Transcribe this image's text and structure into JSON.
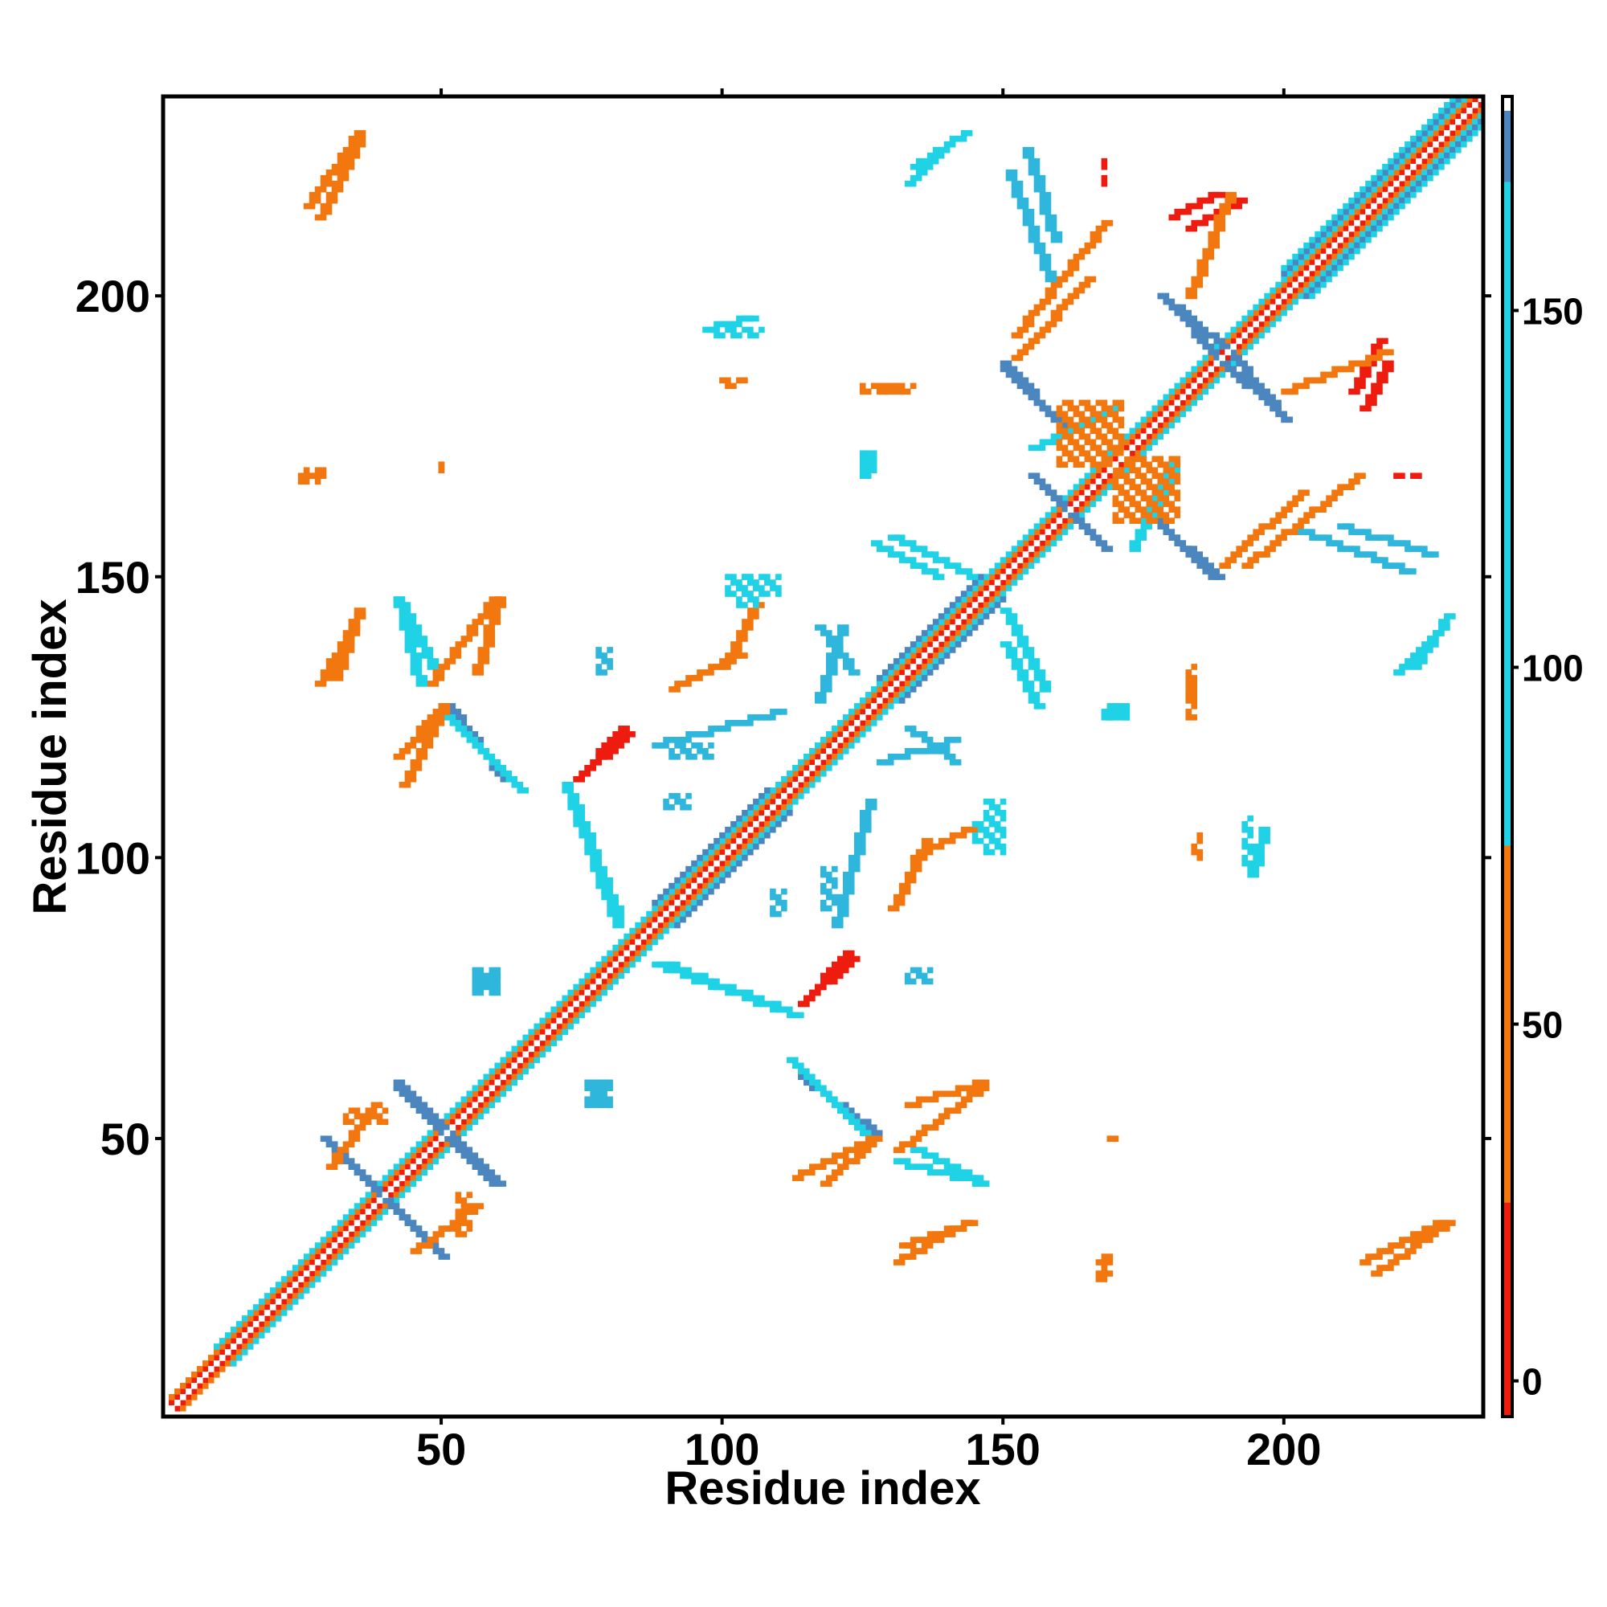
{
  "chart_data": {
    "type": "heatmap",
    "title": "",
    "xlabel": "Residue index",
    "ylabel": "Residue index",
    "xlim": [
      1,
      235
    ],
    "ylim": [
      1,
      235
    ],
    "x_ticks": [
      50,
      100,
      150,
      200
    ],
    "y_ticks": [
      50,
      100,
      150,
      200
    ],
    "x_tick_labels": [
      "50",
      "100",
      "150",
      "200"
    ],
    "y_tick_labels": [
      "50",
      "100",
      "150",
      "200"
    ],
    "colorbar": {
      "range": [
        -5,
        180
      ],
      "ticks": [
        0,
        50,
        100,
        150
      ],
      "tick_labels": [
        "0",
        "50",
        "100",
        "150"
      ],
      "bands": [
        {
          "from": -5,
          "to": 25,
          "color": "#ee1c0e"
        },
        {
          "from": 25,
          "to": 75,
          "color": "#f2770e"
        },
        {
          "from": 75,
          "to": 168,
          "color": "#1fd2e6"
        },
        {
          "from": 168,
          "to": 178,
          "color": "#4c86be"
        },
        {
          "from": 178,
          "to": 180,
          "color": "#ffffff"
        }
      ]
    },
    "palette": {
      "red": "#ee1c0e",
      "orange": "#f2770e",
      "amber": "#f5a20a",
      "cyan": "#1fd2e6",
      "sky": "#2fb6dc",
      "steel": "#4c86be"
    },
    "diagonal": {
      "from": 2,
      "to": 234,
      "value": 180
    },
    "bands": [
      {
        "kind": "parallel",
        "from": 2,
        "to": 234,
        "offset": 1,
        "color": "red"
      },
      {
        "kind": "parallel",
        "from": 2,
        "to": 234,
        "offset": 2,
        "color": "orange"
      },
      {
        "kind": "parallel",
        "from": 10,
        "to": 234,
        "offset": 3,
        "color": "cyan"
      },
      {
        "kind": "parallel",
        "from": 88,
        "to": 108,
        "offset": 4,
        "color": "steel"
      },
      {
        "kind": "parallel",
        "from": 128,
        "to": 146,
        "offset": 4,
        "color": "steel"
      },
      {
        "kind": "parallel",
        "from": 200,
        "to": 232,
        "offset": 4,
        "color": "steel"
      },
      {
        "kind": "parallel",
        "from": 200,
        "to": 232,
        "offset": 5,
        "color": "cyan"
      },
      {
        "kind": "segment",
        "x1": 29,
        "y1": 50,
        "x2": 49,
        "y2": 30,
        "color": "steel"
      },
      {
        "kind": "segment",
        "x1": 42,
        "y1": 59,
        "x2": 60,
        "y2": 42,
        "color": "steel"
      },
      {
        "kind": "segment",
        "x1": 51,
        "y1": 127,
        "x2": 61,
        "y2": 114,
        "color": "steel"
      },
      {
        "kind": "segment",
        "x1": 112,
        "y1": 64,
        "x2": 126,
        "y2": 50,
        "color": "cyan"
      },
      {
        "kind": "segment",
        "x1": 150,
        "y1": 187,
        "x2": 160,
        "y2": 177,
        "color": "steel"
      },
      {
        "kind": "segment",
        "x1": 178,
        "y1": 200,
        "x2": 190,
        "y2": 190,
        "color": "steel"
      },
      {
        "kind": "segment",
        "x1": 188,
        "y1": 189,
        "x2": 200,
        "y2": 178,
        "color": "steel"
      },
      {
        "kind": "segment",
        "x1": 155,
        "y1": 168,
        "x2": 165,
        "y2": 158,
        "color": "steel"
      },
      {
        "kind": "segment",
        "x1": 177,
        "y1": 160,
        "x2": 188,
        "y2": 150,
        "color": "steel"
      },
      {
        "kind": "segment",
        "x1": 74,
        "y1": 114,
        "x2": 83,
        "y2": 122,
        "color": "red"
      },
      {
        "kind": "segment",
        "x1": 114,
        "y1": 74,
        "x2": 123,
        "y2": 82,
        "color": "red"
      },
      {
        "kind": "segment",
        "x1": 42,
        "y1": 146,
        "x2": 49,
        "y2": 133,
        "color": "cyan"
      },
      {
        "kind": "segment",
        "x1": 56,
        "y1": 133,
        "x2": 60,
        "y2": 146,
        "color": "orange"
      },
      {
        "kind": "segment",
        "x1": 42,
        "y1": 118,
        "x2": 50,
        "y2": 127,
        "color": "orange"
      },
      {
        "kind": "segment",
        "x1": 72,
        "y1": 113,
        "x2": 81,
        "y2": 90,
        "color": "cyan"
      },
      {
        "kind": "segment",
        "x1": 88,
        "y1": 81,
        "x2": 110,
        "y2": 73,
        "color": "cyan"
      },
      {
        "kind": "segment",
        "x1": 113,
        "y1": 43,
        "x2": 127,
        "y2": 50,
        "color": "orange"
      },
      {
        "kind": "segment",
        "x1": 131,
        "y1": 48,
        "x2": 146,
        "y2": 59,
        "color": "orange"
      },
      {
        "kind": "segment",
        "x1": 131,
        "y1": 46,
        "x2": 146,
        "y2": 42,
        "color": "cyan"
      },
      {
        "kind": "segment",
        "x1": 132,
        "y1": 31,
        "x2": 144,
        "y2": 35,
        "color": "orange"
      },
      {
        "kind": "segment",
        "x1": 127,
        "y1": 156,
        "x2": 138,
        "y2": 150,
        "color": "cyan"
      },
      {
        "kind": "segment",
        "x1": 150,
        "y1": 144,
        "x2": 157,
        "y2": 130,
        "color": "cyan"
      },
      {
        "kind": "segment",
        "x1": 154,
        "y1": 226,
        "x2": 159,
        "y2": 210,
        "color": "sky"
      },
      {
        "kind": "segment",
        "x1": 152,
        "y1": 193,
        "x2": 168,
        "y2": 213,
        "color": "orange"
      },
      {
        "kind": "segment",
        "x1": 183,
        "y1": 212,
        "x2": 192,
        "y2": 217,
        "color": "red"
      },
      {
        "kind": "segment",
        "x1": 200,
        "y1": 183,
        "x2": 218,
        "y2": 190,
        "color": "orange"
      },
      {
        "kind": "segment",
        "x1": 189,
        "y1": 152,
        "x2": 203,
        "y2": 165,
        "color": "orange"
      },
      {
        "kind": "segment",
        "x1": 203,
        "y1": 158,
        "x2": 222,
        "y2": 151,
        "color": "sky"
      },
      {
        "kind": "segment",
        "x1": 134,
        "y1": 100,
        "x2": 145,
        "y2": 106,
        "color": "orange"
      },
      {
        "kind": "segment",
        "x1": 128,
        "y1": 117,
        "x2": 141,
        "y2": 121,
        "color": "sky"
      },
      {
        "kind": "segment",
        "x1": 117,
        "y1": 141,
        "x2": 123,
        "y2": 133,
        "color": "sky"
      },
      {
        "kind": "segment",
        "x1": 91,
        "y1": 130,
        "x2": 103,
        "y2": 136,
        "color": "orange"
      },
      {
        "kind": "segment",
        "x1": 28,
        "y1": 131,
        "x2": 35,
        "y2": 143,
        "color": "orange"
      },
      {
        "kind": "segment",
        "x1": 26,
        "y1": 216,
        "x2": 35,
        "y2": 229,
        "color": "orange"
      },
      {
        "kind": "segment",
        "x1": 134,
        "y1": 223,
        "x2": 143,
        "y2": 229,
        "color": "cyan"
      },
      {
        "kind": "segment",
        "x1": 194,
        "y1": 97,
        "x2": 196,
        "y2": 105,
        "color": "cyan"
      },
      {
        "kind": "segment",
        "x1": 214,
        "y1": 28,
        "x2": 228,
        "y2": 35,
        "color": "orange"
      },
      {
        "kind": "segment",
        "x1": 220,
        "y1": 133,
        "x2": 228,
        "y2": 141,
        "color": "cyan"
      },
      {
        "kind": "segment",
        "x1": 155,
        "y1": 173,
        "x2": 170,
        "y2": 180,
        "color": "cyan"
      },
      {
        "kind": "segment",
        "x1": 214,
        "y1": 180,
        "x2": 218,
        "y2": 188,
        "color": "red"
      },
      {
        "kind": "segment",
        "x1": 120,
        "y1": 88,
        "x2": 126,
        "y2": 110,
        "color": "sky"
      },
      {
        "kind": "segment",
        "x1": 30,
        "y1": 45,
        "x2": 38,
        "y2": 56,
        "color": "orange"
      }
    ],
    "blobs": [
      {
        "x": 26,
        "y": 168,
        "w": 4,
        "h": 2,
        "color": "orange"
      },
      {
        "x": 50,
        "y": 169,
        "w": 1,
        "h": 2,
        "color": "orange"
      },
      {
        "x": 99,
        "y": 193,
        "w": 9,
        "h": 2,
        "color": "cyan"
      },
      {
        "x": 100,
        "y": 185,
        "w": 5,
        "h": 1,
        "color": "orange"
      },
      {
        "x": 125,
        "y": 183,
        "w": 7,
        "h": 2,
        "color": "orange"
      },
      {
        "x": 125,
        "y": 169,
        "w": 3,
        "h": 4,
        "color": "cyan"
      },
      {
        "x": 101,
        "y": 147,
        "w": 10,
        "h": 4,
        "color": "cyan"
      },
      {
        "x": 145,
        "y": 103,
        "w": 6,
        "h": 4,
        "color": "cyan"
      },
      {
        "x": 168,
        "y": 125,
        "w": 5,
        "h": 3,
        "color": "cyan"
      },
      {
        "x": 183,
        "y": 129,
        "w": 2,
        "h": 6,
        "color": "orange"
      },
      {
        "x": 184,
        "y": 101,
        "w": 1,
        "h": 3,
        "color": "orange"
      },
      {
        "x": 169,
        "y": 50,
        "w": 3,
        "h": 1,
        "color": "orange"
      },
      {
        "x": 167,
        "y": 25,
        "w": 2,
        "h": 4,
        "color": "orange"
      },
      {
        "x": 76,
        "y": 56,
        "w": 4,
        "h": 5,
        "color": "sky"
      },
      {
        "x": 56,
        "y": 77,
        "w": 5,
        "h": 4,
        "color": "sky"
      },
      {
        "x": 133,
        "y": 78,
        "w": 5,
        "h": 3,
        "color": "sky"
      },
      {
        "x": 118,
        "y": 91,
        "w": 3,
        "h": 8,
        "color": "sky"
      },
      {
        "x": 53,
        "y": 33,
        "w": 3,
        "h": 8,
        "color": "orange"
      },
      {
        "x": 160,
        "y": 170,
        "w": 12,
        "h": 12,
        "color": "orange"
      },
      {
        "x": 220,
        "y": 168,
        "w": 5,
        "h": 1,
        "color": "red"
      },
      {
        "x": 90,
        "y": 109,
        "w": 5,
        "h": 3,
        "color": "sky"
      }
    ]
  }
}
